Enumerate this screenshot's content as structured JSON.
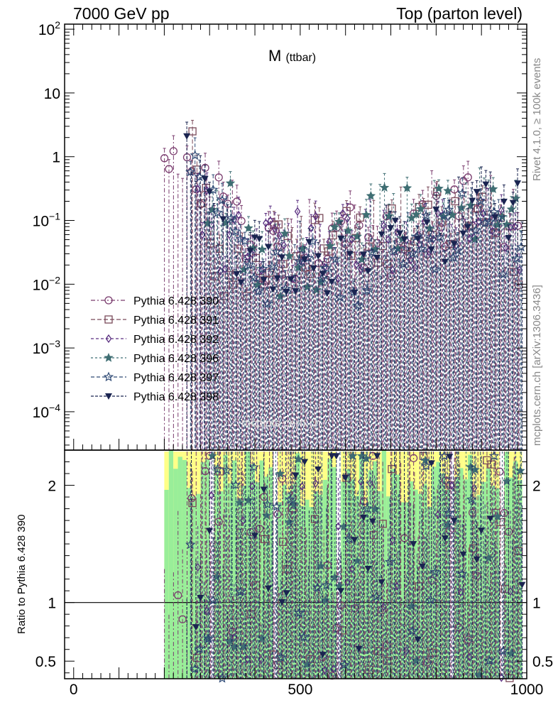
{
  "header": {
    "left": "7000 GeV pp",
    "right": "Top (parton level)"
  },
  "side_labels": {
    "rivet": "Rivet 4.1.0, ≥ 100k events",
    "mcplots": "mcplots.cern.ch [arXiv:1306.3436]"
  },
  "plot_title": {
    "main": "M",
    "sub": "(ttbar)"
  },
  "watermark": "mcplots.cern.ch",
  "colors": {
    "green_band": "#99ee99",
    "yellow_band": "#ffff88",
    "ref_line": "#000000"
  },
  "chart_data": {
    "type": "scatter",
    "xlabel": "",
    "xlim": [
      -20,
      1000
    ],
    "x_ticks": [
      0,
      500,
      1000
    ],
    "x_tick_labels": [
      "0",
      "500",
      "1000"
    ],
    "main_panel": {
      "yscale": "log",
      "ylim": [
        2.5e-05,
        120
      ],
      "y_tick_labels": [
        {
          "v": 100,
          "t": "10^2"
        },
        {
          "v": 10,
          "t": "10"
        },
        {
          "v": 1,
          "t": "1"
        },
        {
          "v": 0.1,
          "t": "10^-1"
        },
        {
          "v": 0.01,
          "t": "10^-2"
        },
        {
          "v": 0.001,
          "t": "10^-3"
        },
        {
          "v": 0.0001,
          "t": "10^-4"
        }
      ]
    },
    "ratio_panel": {
      "ylabel": "Ratio to Pythia 6.428 390",
      "ylim": [
        0.35,
        2.3
      ],
      "y_ticks": [
        0.5,
        1,
        2
      ],
      "y_tick_labels": [
        "0.5",
        "1",
        "2"
      ],
      "reference": 1
    },
    "bin_width": 10,
    "bins_x_start": 200,
    "bins_x_end": 990,
    "series": [
      {
        "name": "Pythia 6.428 390",
        "color": "#7a3c6e",
        "marker": "circle-open",
        "dash": "6,3,2,3",
        "points": [
          [
            200,
            1.0
          ],
          [
            430,
            0.022
          ],
          [
            560,
            0.043
          ],
          [
            640,
            0.06
          ],
          [
            710,
            0.045
          ],
          [
            800,
            0.12
          ],
          [
            860,
            0.15
          ],
          [
            930,
            0.07
          ]
        ]
      },
      {
        "name": "Pythia 6.428 391",
        "color": "#7a4a5a",
        "marker": "square-open",
        "dash": "6,3",
        "points": [
          [
            260,
            1.0
          ],
          [
            320,
            0.018
          ],
          [
            440,
            0.028
          ],
          [
            600,
            0.095
          ],
          [
            670,
            0.058
          ],
          [
            800,
            0.085
          ],
          [
            870,
            0.24
          ],
          [
            980,
            0.017
          ]
        ]
      },
      {
        "name": "Pythia 6.428 392",
        "color": "#5a2f80",
        "marker": "diamond-open",
        "dash": "4,3",
        "points": [
          [
            270,
            0.15
          ],
          [
            320,
            0.05
          ],
          [
            450,
            0.045
          ],
          [
            520,
            0.04
          ],
          [
            700,
            0.045
          ],
          [
            770,
            0.06
          ],
          [
            880,
            0.1
          ],
          [
            960,
            0.06
          ]
        ]
      },
      {
        "name": "Pythia 6.428 396",
        "color": "#3f6e73",
        "marker": "star-filled",
        "dash": "3,3",
        "points": [
          [
            290,
            0.12
          ],
          [
            340,
            0.15
          ],
          [
            400,
            0.013
          ],
          [
            560,
            0.03
          ],
          [
            690,
            0.12
          ],
          [
            750,
            0.12
          ],
          [
            880,
            0.14
          ],
          [
            970,
            0.1
          ]
        ]
      },
      {
        "name": "Pythia 6.428 397",
        "color": "#2f4a75",
        "marker": "star-open",
        "dash": "5,3",
        "points": [
          [
            250,
            1.05
          ],
          [
            320,
            0.1
          ],
          [
            420,
            0.014
          ],
          [
            580,
            0.013
          ],
          [
            700,
            0.025
          ],
          [
            820,
            0.07
          ],
          [
            890,
            0.11
          ],
          [
            940,
            0.045
          ]
        ]
      },
      {
        "name": "Pythia 6.428 398",
        "color": "#1a2450",
        "marker": "triangle-down-filled",
        "dash": "4,2",
        "points": [
          [
            240,
            1.0
          ],
          [
            290,
            0.08
          ],
          [
            360,
            0.02
          ],
          [
            480,
            0.022
          ],
          [
            600,
            0.018
          ],
          [
            720,
            0.075
          ],
          [
            830,
            0.08
          ],
          [
            940,
            0.14
          ]
        ]
      }
    ]
  }
}
